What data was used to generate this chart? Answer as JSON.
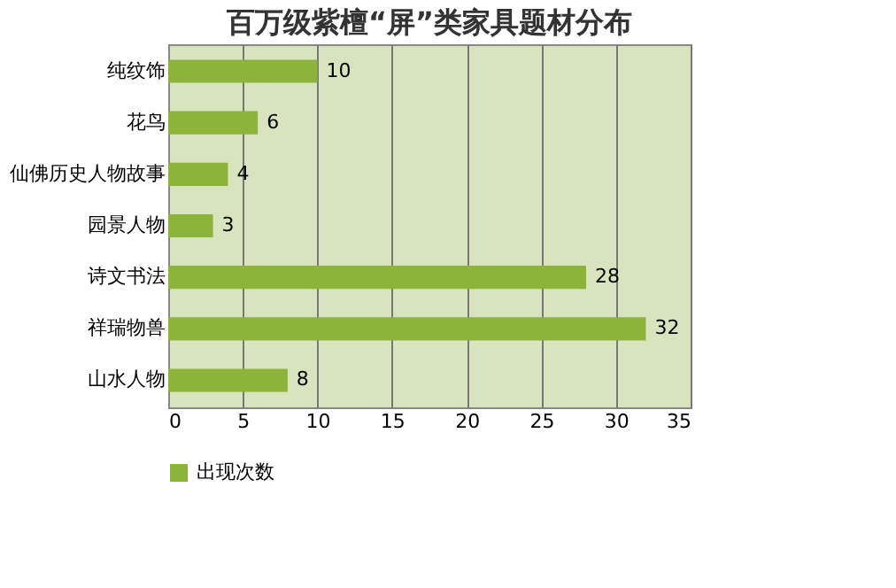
{
  "chart_data": {
    "type": "bar",
    "orientation": "horizontal",
    "title": "百万级紫檀“屏”类家具题材分布",
    "categories": [
      "纯纹饰",
      "花鸟",
      "仙佛历史人物故事",
      "园景人物",
      "诗文书法",
      "祥瑞物兽",
      "山水人物"
    ],
    "series": [
      {
        "name": "出现次数",
        "color": "#8db33a",
        "values": [
          10,
          6,
          4,
          3,
          28,
          32,
          8
        ]
      }
    ],
    "xlim": [
      0,
      35
    ],
    "xticks": [
      0,
      5,
      10,
      15,
      20,
      25,
      30,
      35
    ],
    "grid": "x",
    "legend": "bottom",
    "data_labels": true
  }
}
